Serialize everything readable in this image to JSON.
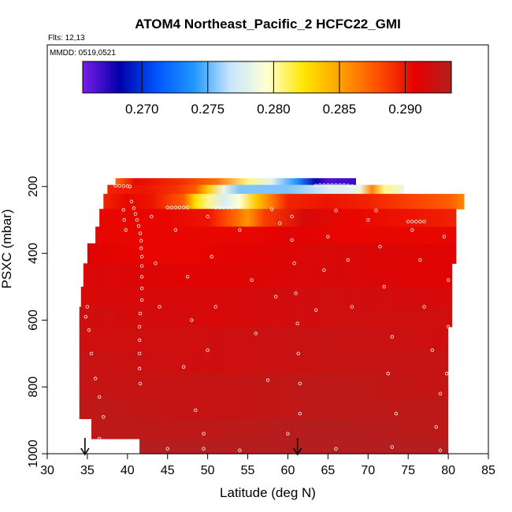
{
  "chart_data": {
    "type": "heatmap",
    "title": "ATOM4 Northeast_Pacific_2 HCFC22_GMI",
    "flights_label": "Flts: 12,13",
    "dates_label": "MMDD: 0519,0521",
    "xlabel": "Latitude (deg N)",
    "ylabel": "PSXC (mbar)",
    "xlim": [
      30,
      85
    ],
    "ylim": [
      1000,
      0
    ],
    "xticks": [
      "30",
      "35",
      "40",
      "45",
      "50",
      "55",
      "60",
      "65",
      "70",
      "75",
      "80",
      "85"
    ],
    "yticks": [
      "200",
      "400",
      "600",
      "800",
      "1000"
    ],
    "colorbar": {
      "range": [
        0.2655,
        0.2935
      ],
      "ticks": [
        "0.270",
        "0.275",
        "0.280",
        "0.285",
        "0.290"
      ],
      "tick_values": [
        0.27,
        0.275,
        0.28,
        0.285,
        0.29
      ],
      "colors": [
        "#7a1ee6",
        "#0000aa",
        "#0055ff",
        "#1e96ff",
        "#c8e6ff",
        "#ffffd2",
        "#ffe600",
        "#ffa000",
        "#ff5000",
        "#e60000",
        "#b41e1e"
      ]
    },
    "arrows_lat": [
      34.7,
      61.2
    ],
    "grid": false,
    "bands": [
      {
        "p": [
          175,
          195
        ],
        "lat": [
          38.5,
          68.5
        ],
        "stops": [
          [
            38.5,
            0.287
          ],
          [
            41,
            0.2905
          ],
          [
            43,
            0.29
          ],
          [
            47,
            0.289
          ],
          [
            51,
            0.287
          ],
          [
            55,
            0.2805
          ],
          [
            58,
            0.278
          ],
          [
            61,
            0.274
          ],
          [
            63.5,
            0.268
          ],
          [
            65,
            0.2665
          ],
          [
            68.5,
            0.267
          ]
        ]
      },
      {
        "p": [
          195,
          222
        ],
        "lat": [
          37.5,
          74.5
        ],
        "stops": [
          [
            37.5,
            0.2895
          ],
          [
            42,
            0.29
          ],
          [
            46,
            0.289
          ],
          [
            48.5,
            0.2875
          ],
          [
            50,
            0.2835
          ],
          [
            52,
            0.2785
          ],
          [
            54,
            0.2755
          ],
          [
            60,
            0.2755
          ],
          [
            65,
            0.2775
          ],
          [
            69,
            0.2785
          ],
          [
            70.5,
            0.286
          ],
          [
            72,
            0.2805
          ],
          [
            74.5,
            0.2785
          ]
        ]
      },
      {
        "p": [
          222,
          267
        ],
        "lat": [
          37,
          82
        ],
        "stops": [
          [
            37,
            0.2895
          ],
          [
            40,
            0.2905
          ],
          [
            43,
            0.29
          ],
          [
            47,
            0.2875
          ],
          [
            48.5,
            0.2825
          ],
          [
            50,
            0.2805
          ],
          [
            52,
            0.2775
          ],
          [
            54,
            0.2795
          ],
          [
            56,
            0.2835
          ],
          [
            58,
            0.2865
          ],
          [
            60,
            0.2895
          ],
          [
            65,
            0.29
          ],
          [
            70,
            0.2895
          ],
          [
            75,
            0.2885
          ],
          [
            80,
            0.2875
          ],
          [
            82,
            0.286
          ]
        ]
      },
      {
        "p": [
          267,
          320
        ],
        "lat": [
          36.5,
          81
        ],
        "stops": [
          [
            36.5,
            0.2905
          ],
          [
            45,
            0.2905
          ],
          [
            50,
            0.29
          ],
          [
            53,
            0.2875
          ],
          [
            55,
            0.2855
          ],
          [
            57,
            0.2885
          ],
          [
            62,
            0.2915
          ],
          [
            68,
            0.2905
          ],
          [
            75,
            0.29
          ],
          [
            81,
            0.2895
          ]
        ]
      },
      {
        "p": [
          320,
          370
        ],
        "lat": [
          36,
          81
        ],
        "stops": [
          [
            36,
            0.2905
          ],
          [
            45,
            0.2905
          ],
          [
            55,
            0.2905
          ],
          [
            60,
            0.291
          ],
          [
            70,
            0.2905
          ],
          [
            81,
            0.2905
          ]
        ]
      },
      {
        "p": [
          370,
          430
        ],
        "lat": [
          35,
          81
        ],
        "stops": [
          [
            35,
            0.291
          ],
          [
            45,
            0.2905
          ],
          [
            55,
            0.291
          ],
          [
            65,
            0.2915
          ],
          [
            81,
            0.291
          ]
        ]
      },
      {
        "p": [
          430,
          500
        ],
        "lat": [
          34.5,
          80.5
        ],
        "stops": [
          [
            34.5,
            0.2915
          ],
          [
            50,
            0.291
          ],
          [
            65,
            0.2915
          ],
          [
            80.5,
            0.291
          ]
        ]
      },
      {
        "p": [
          500,
          560
        ],
        "lat": [
          34.2,
          80.5
        ],
        "stops": [
          [
            34.2,
            0.2915
          ],
          [
            50,
            0.2915
          ],
          [
            65,
            0.292
          ],
          [
            80.5,
            0.2915
          ]
        ]
      },
      {
        "p": [
          560,
          620
        ],
        "lat": [
          34,
          80.5
        ],
        "stops": [
          [
            34,
            0.292
          ],
          [
            50,
            0.2915
          ],
          [
            65,
            0.292
          ],
          [
            80.5,
            0.292
          ]
        ]
      },
      {
        "p": [
          620,
          690
        ],
        "lat": [
          34,
          80
        ],
        "stops": [
          [
            34,
            0.292
          ],
          [
            50,
            0.292
          ],
          [
            65,
            0.2925
          ],
          [
            80,
            0.292
          ]
        ]
      },
      {
        "p": [
          690,
          760
        ],
        "lat": [
          34,
          80
        ],
        "stops": [
          [
            34,
            0.2925
          ],
          [
            50,
            0.292
          ],
          [
            65,
            0.2925
          ],
          [
            80,
            0.2925
          ]
        ]
      },
      {
        "p": [
          760,
          830
        ],
        "lat": [
          34,
          80
        ],
        "stops": [
          [
            34,
            0.2925
          ],
          [
            50,
            0.2925
          ],
          [
            65,
            0.293
          ],
          [
            80,
            0.2925
          ]
        ]
      },
      {
        "p": [
          830,
          895
        ],
        "lat": [
          34,
          80
        ],
        "stops": [
          [
            34,
            0.293
          ],
          [
            50,
            0.2925
          ],
          [
            65,
            0.293
          ],
          [
            80,
            0.293
          ]
        ]
      },
      {
        "p": [
          895,
          955
        ],
        "lat": [
          35.5,
          80
        ],
        "stops": [
          [
            35.5,
            0.293
          ],
          [
            50,
            0.293
          ],
          [
            65,
            0.2935
          ],
          [
            80,
            0.293
          ]
        ]
      },
      {
        "p": [
          955,
          1000
        ],
        "lat": [
          41.5,
          80
        ],
        "stops": [
          [
            41.5,
            0.2935
          ],
          [
            60,
            0.2935
          ],
          [
            80,
            0.2935
          ]
        ]
      }
    ],
    "points": [
      {
        "lat": 38.5,
        "p": 198
      },
      {
        "lat": 39.0,
        "p": 198
      },
      {
        "lat": 39.5,
        "p": 199
      },
      {
        "lat": 40.0,
        "p": 199
      },
      {
        "lat": 40.3,
        "p": 200
      },
      {
        "lat": 63.5,
        "p": 197
      },
      {
        "lat": 64.0,
        "p": 196
      },
      {
        "lat": 64.5,
        "p": 196
      },
      {
        "lat": 65.0,
        "p": 196
      },
      {
        "lat": 65.5,
        "p": 196
      },
      {
        "lat": 66.0,
        "p": 196
      },
      {
        "lat": 66.5,
        "p": 196
      },
      {
        "lat": 67.0,
        "p": 196
      },
      {
        "lat": 67.5,
        "p": 197
      },
      {
        "lat": 68.0,
        "p": 199
      },
      {
        "lat": 45.0,
        "p": 263
      },
      {
        "lat": 45.5,
        "p": 263
      },
      {
        "lat": 46.0,
        "p": 263
      },
      {
        "lat": 46.5,
        "p": 263
      },
      {
        "lat": 47.0,
        "p": 263
      },
      {
        "lat": 47.5,
        "p": 263
      },
      {
        "lat": 51.0,
        "p": 263
      },
      {
        "lat": 51.5,
        "p": 263
      },
      {
        "lat": 52.0,
        "p": 263
      },
      {
        "lat": 52.5,
        "p": 263
      },
      {
        "lat": 53.0,
        "p": 263
      },
      {
        "lat": 58.0,
        "p": 268
      },
      {
        "lat": 66.0,
        "p": 272
      },
      {
        "lat": 71.0,
        "p": 272
      },
      {
        "lat": 75.0,
        "p": 305
      },
      {
        "lat": 75.5,
        "p": 305
      },
      {
        "lat": 76.0,
        "p": 305
      },
      {
        "lat": 76.5,
        "p": 305
      },
      {
        "lat": 77.0,
        "p": 305
      },
      {
        "lat": 40.5,
        "p": 245
      },
      {
        "lat": 40.8,
        "p": 265
      },
      {
        "lat": 41.0,
        "p": 282
      },
      {
        "lat": 41.2,
        "p": 300
      },
      {
        "lat": 41.4,
        "p": 318
      },
      {
        "lat": 41.6,
        "p": 340
      },
      {
        "lat": 41.7,
        "p": 362
      },
      {
        "lat": 41.7,
        "p": 385
      },
      {
        "lat": 41.8,
        "p": 410
      },
      {
        "lat": 41.8,
        "p": 438
      },
      {
        "lat": 41.8,
        "p": 470
      },
      {
        "lat": 41.8,
        "p": 505
      },
      {
        "lat": 41.8,
        "p": 540
      },
      {
        "lat": 41.6,
        "p": 580
      },
      {
        "lat": 41.5,
        "p": 620
      },
      {
        "lat": 41.5,
        "p": 660
      },
      {
        "lat": 41.5,
        "p": 700
      },
      {
        "lat": 41.5,
        "p": 745
      },
      {
        "lat": 41.6,
        "p": 790
      },
      {
        "lat": 39.5,
        "p": 270
      },
      {
        "lat": 39.6,
        "p": 300
      },
      {
        "lat": 39.8,
        "p": 330
      },
      {
        "lat": 35.0,
        "p": 560
      },
      {
        "lat": 34.8,
        "p": 590
      },
      {
        "lat": 35.2,
        "p": 630
      },
      {
        "lat": 35.5,
        "p": 700
      },
      {
        "lat": 36.0,
        "p": 775
      },
      {
        "lat": 36.5,
        "p": 830
      },
      {
        "lat": 37.0,
        "p": 890
      },
      {
        "lat": 36.5,
        "p": 955
      },
      {
        "lat": 43.0,
        "p": 290
      },
      {
        "lat": 43.5,
        "p": 430
      },
      {
        "lat": 44.0,
        "p": 560
      },
      {
        "lat": 46.0,
        "p": 330
      },
      {
        "lat": 47.5,
        "p": 470
      },
      {
        "lat": 48.0,
        "p": 600
      },
      {
        "lat": 47.0,
        "p": 740
      },
      {
        "lat": 48.5,
        "p": 870
      },
      {
        "lat": 50.0,
        "p": 290
      },
      {
        "lat": 50.5,
        "p": 410
      },
      {
        "lat": 51.0,
        "p": 560
      },
      {
        "lat": 50.0,
        "p": 690
      },
      {
        "lat": 49.5,
        "p": 940
      },
      {
        "lat": 49.5,
        "p": 985
      },
      {
        "lat": 54.0,
        "p": 330
      },
      {
        "lat": 55.5,
        "p": 480
      },
      {
        "lat": 56.0,
        "p": 640
      },
      {
        "lat": 57.5,
        "p": 780
      },
      {
        "lat": 59.0,
        "p": 310
      },
      {
        "lat": 58.5,
        "p": 530
      },
      {
        "lat": 60.5,
        "p": 290
      },
      {
        "lat": 60.5,
        "p": 360
      },
      {
        "lat": 60.8,
        "p": 430
      },
      {
        "lat": 61.0,
        "p": 520
      },
      {
        "lat": 61.2,
        "p": 610
      },
      {
        "lat": 61.3,
        "p": 700
      },
      {
        "lat": 61.5,
        "p": 790
      },
      {
        "lat": 61.5,
        "p": 880
      },
      {
        "lat": 60.0,
        "p": 940
      },
      {
        "lat": 65.0,
        "p": 350
      },
      {
        "lat": 64.5,
        "p": 450
      },
      {
        "lat": 63.5,
        "p": 570
      },
      {
        "lat": 67.5,
        "p": 420
      },
      {
        "lat": 68.0,
        "p": 560
      },
      {
        "lat": 70.0,
        "p": 300
      },
      {
        "lat": 71.5,
        "p": 380
      },
      {
        "lat": 72.0,
        "p": 500
      },
      {
        "lat": 73.0,
        "p": 650
      },
      {
        "lat": 72.5,
        "p": 760
      },
      {
        "lat": 73.5,
        "p": 880
      },
      {
        "lat": 75.5,
        "p": 330
      },
      {
        "lat": 76.5,
        "p": 420
      },
      {
        "lat": 77.0,
        "p": 560
      },
      {
        "lat": 78.0,
        "p": 690
      },
      {
        "lat": 79.0,
        "p": 820
      },
      {
        "lat": 78.5,
        "p": 920
      },
      {
        "lat": 79.5,
        "p": 350
      },
      {
        "lat": 80.0,
        "p": 480
      },
      {
        "lat": 80.0,
        "p": 620
      },
      {
        "lat": 79.8,
        "p": 760
      },
      {
        "lat": 45.0,
        "p": 985
      },
      {
        "lat": 54.0,
        "p": 990
      },
      {
        "lat": 66.0,
        "p": 985
      },
      {
        "lat": 73.0,
        "p": 980
      },
      {
        "lat": 79.0,
        "p": 990
      }
    ]
  }
}
